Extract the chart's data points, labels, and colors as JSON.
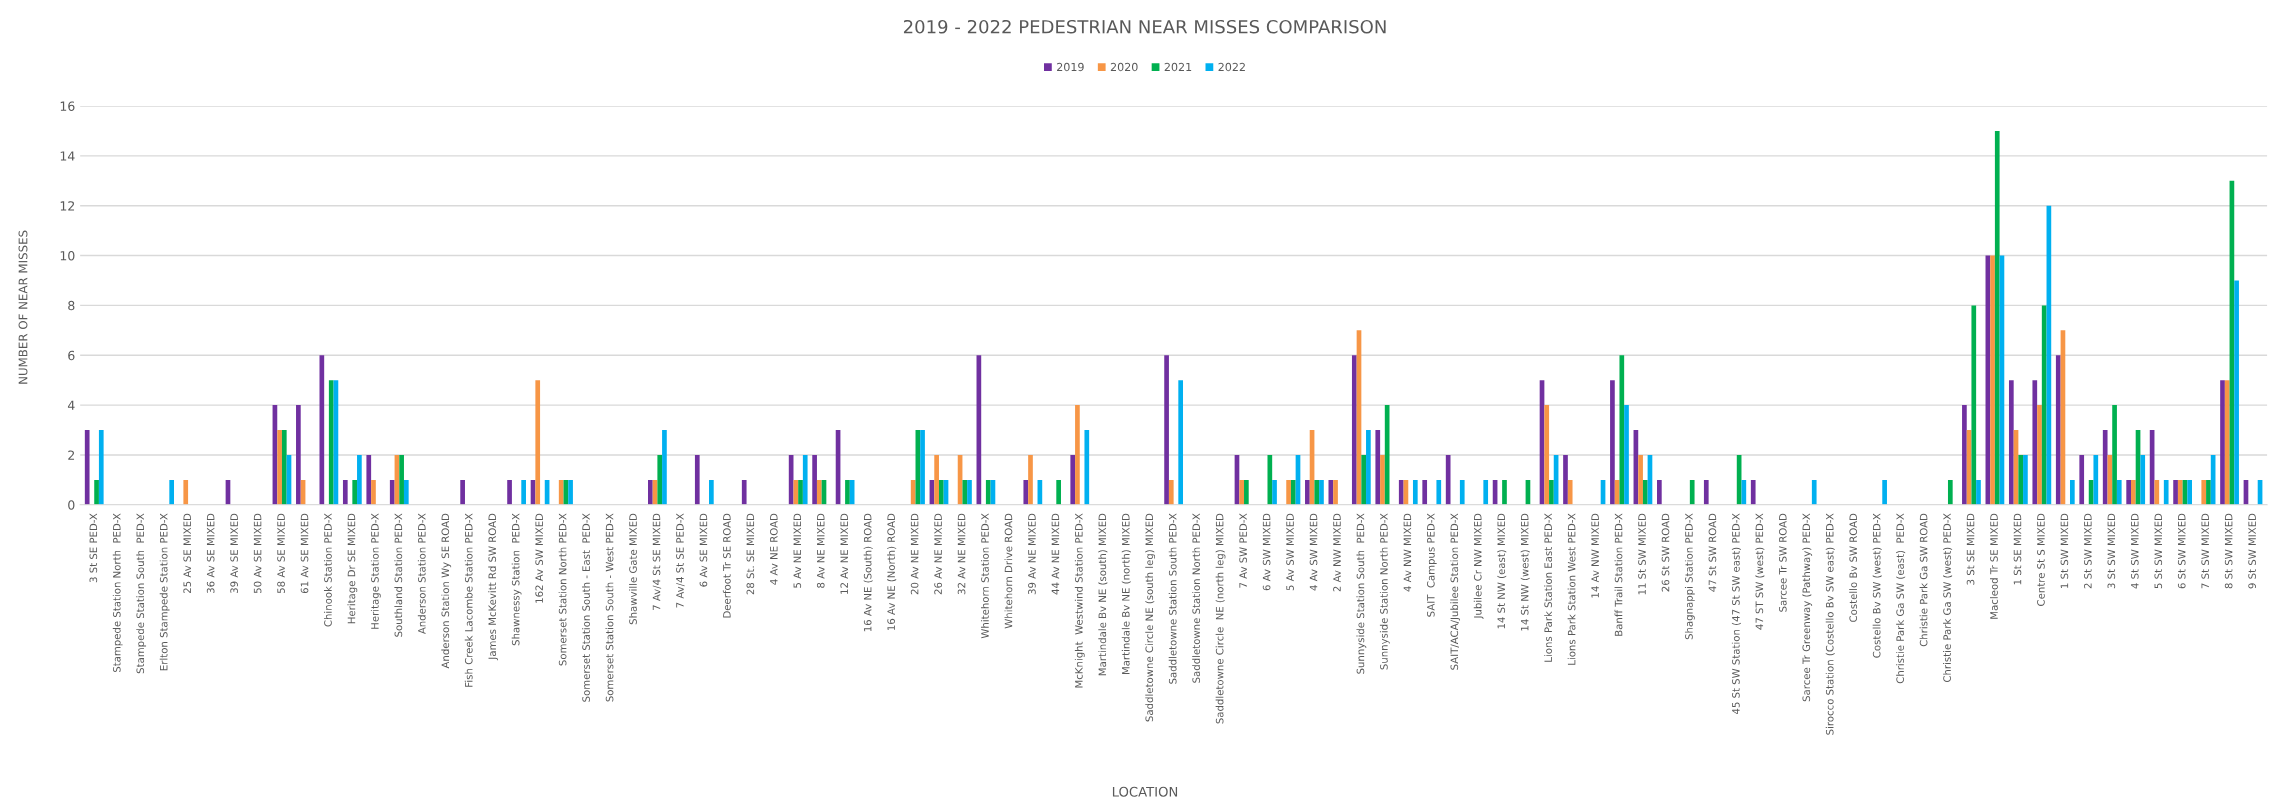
{
  "chart_data": {
    "type": "bar",
    "title": "2019 - 2022 PEDESTRIAN NEAR MISSES COMPARISON",
    "xlabel": "LOCATION",
    "ylabel": "NUMBER OF NEAR MISSES",
    "categories": [
      "3 St SE PED-X",
      "Stampede Station North  PED-X",
      "Stampede Station South  PED-X",
      "Erlton Stampede Station PED-X",
      "25 Av SE MIXED",
      "36 Av SE MIXED",
      "39 Av SE MIXED",
      "50 Av SE MIXED",
      "58 Av SE MIXED",
      "61 Av SE MIXED",
      "Chinook Station PED-X",
      "Heritage Dr SE MIXED",
      "Heritage Station PED-X",
      "Southland Station PED-X",
      "Anderson Station PED-X",
      "Anderson Station Wy SE ROAD",
      "Fish Creek Lacombe Station PED-X",
      "James McKevitt Rd SW ROAD",
      "Shawnessy Station  PED-X",
      "162 Av SW MIXED",
      "Somerset Station North PED-X",
      "Somerset Station South - East  PED-X",
      "Somerset Station South - West PED-X",
      "Shawville Gate MIXED",
      "7 Av/4 St SE MIXED",
      "7 Av/4 St SE PED-X",
      "6 Av SE MIXED",
      "Deerfoot Tr SE ROAD",
      "28 St. SE MIXED",
      "4 Av NE ROAD",
      "5 Av NE MIXED",
      "8 Av NE MIXED",
      "12 Av NE MIXED",
      "16 Av NE (South) ROAD",
      "16 Av NE (North) ROAD",
      "20 Av NE MIXED",
      "26 Av NE MIXED",
      "32 Av NE MIXED",
      "Whitehorn Station PED-X",
      "Whitehorn Drive ROAD",
      "39 Av NE MIXED",
      "44 Av NE MIXED",
      "McKnight  Westwind Station PED-X",
      "Martindale Bv NE (south) MIXED",
      "Martindale Bv NE (north) MIXED",
      "Saddletowne Circle NE (south leg) MIXED",
      "Saddletowne Station South PED-X",
      "Saddletowne Station North PED-X",
      "Saddletowne Circle  NE (north leg) MIXED",
      "7 Av SW PED-X",
      "6 Av SW MIXED",
      "5 Av SW MIXED",
      "4 Av SW MIXED",
      "2 Av NW MIXED",
      "Sunnyside Station South  PED-X",
      "Sunnyside Station North PED-X",
      "4 Av NW MIXED",
      "SAIT  Campus PED-X",
      "SAIT/ACA/Jubilee Station PED-X",
      "Jubilee Cr NW MIXED",
      "14 St NW (east) MIXED",
      "14 St NW (west) MIXED",
      "Lions Park Station East PED-X",
      "Lions Park Station West PED-X",
      "14 Av NW MIXED",
      "Banff Trail Station PED-X",
      "11 St SW MIXED",
      "26 St SW ROAD",
      "Shagnappi Station PED-X",
      "47 St SW ROAD",
      "45 St SW Station (47 St SW east) PED-X",
      "47 ST SW (west) PED-X",
      "Sarcee Tr SW ROAD",
      "Sarcee Tr Greenway (Pathway) PED-X",
      "Sirocco Station (Costello Bv SW east) PED-X",
      "Costello Bv SW ROAD",
      "Costello Bv SW (west) PED-X",
      "Christie Park Ga SW (east)  PED-X",
      "Christie Park Ga SW ROAD",
      "Christie Park Ga SW (west) PED-X",
      "3 St SE MIXED",
      "Macleod Tr SE MIXED",
      "1 St SE MIXED",
      "Centre St S MIXED",
      "1 St SW MIXED",
      "2 St SW MIXED",
      "3 St SW MIXED",
      "4 St SW MIXED",
      "5 St SW MIXED",
      "6 St SW MIXED",
      "7 St SW MIXED",
      "8 St SW MIXED",
      "9 St SW MIXED"
    ],
    "series": [
      {
        "name": "2019",
        "color": "#7030a0",
        "values": [
          3,
          0,
          0,
          0,
          0,
          0,
          1,
          0,
          4,
          4,
          6,
          1,
          2,
          1,
          0,
          0,
          1,
          0,
          1,
          1,
          0,
          0,
          0,
          0,
          1,
          0,
          2,
          0,
          1,
          0,
          2,
          2,
          3,
          0,
          0,
          0,
          1,
          0,
          6,
          0,
          1,
          0,
          2,
          0,
          0,
          0,
          6,
          0,
          0,
          2,
          0,
          0,
          1,
          1,
          6,
          3,
          1,
          1,
          2,
          0,
          1,
          0,
          5,
          2,
          0,
          5,
          3,
          1,
          0,
          1,
          0,
          1,
          0,
          0,
          0,
          0,
          0,
          0,
          0,
          0,
          4,
          10,
          5,
          5,
          6,
          2,
          3,
          1,
          3,
          1,
          0,
          5,
          1
        ]
      },
      {
        "name": "2020",
        "color": "#f79646",
        "values": [
          0,
          0,
          0,
          0,
          1,
          0,
          0,
          0,
          3,
          1,
          0,
          0,
          1,
          2,
          0,
          0,
          0,
          0,
          0,
          5,
          1,
          0,
          0,
          0,
          1,
          0,
          0,
          0,
          0,
          0,
          1,
          1,
          0,
          0,
          0,
          1,
          2,
          2,
          0,
          0,
          2,
          0,
          4,
          0,
          0,
          0,
          1,
          0,
          0,
          1,
          0,
          1,
          3,
          1,
          7,
          2,
          1,
          0,
          0,
          0,
          0,
          0,
          4,
          1,
          0,
          1,
          2,
          0,
          0,
          0,
          0,
          0,
          0,
          0,
          0,
          0,
          0,
          0,
          0,
          0,
          3,
          10,
          3,
          4,
          7,
          0,
          2,
          1,
          1,
          1,
          1,
          5,
          0
        ]
      },
      {
        "name": "2021",
        "color": "#00b050",
        "values": [
          1,
          0,
          0,
          0,
          0,
          0,
          0,
          0,
          3,
          0,
          5,
          1,
          0,
          2,
          0,
          0,
          0,
          0,
          0,
          0,
          1,
          0,
          0,
          0,
          2,
          0,
          0,
          0,
          0,
          0,
          1,
          1,
          1,
          0,
          0,
          3,
          1,
          1,
          1,
          0,
          0,
          1,
          0,
          0,
          0,
          0,
          0,
          0,
          0,
          1,
          2,
          1,
          1,
          0,
          2,
          4,
          0,
          0,
          0,
          0,
          1,
          1,
          1,
          0,
          0,
          6,
          1,
          0,
          1,
          0,
          2,
          0,
          0,
          0,
          0,
          0,
          0,
          0,
          0,
          1,
          8,
          15,
          2,
          8,
          0,
          1,
          4,
          3,
          0,
          1,
          1,
          13,
          0
        ]
      },
      {
        "name": "2022",
        "color": "#00b0f0",
        "values": [
          3,
          0,
          0,
          1,
          0,
          0,
          0,
          0,
          2,
          0,
          5,
          2,
          0,
          1,
          0,
          0,
          0,
          0,
          1,
          1,
          1,
          0,
          0,
          0,
          3,
          0,
          1,
          0,
          0,
          0,
          2,
          0,
          1,
          0,
          0,
          3,
          1,
          1,
          1,
          0,
          1,
          0,
          3,
          0,
          0,
          0,
          5,
          0,
          0,
          0,
          1,
          2,
          1,
          0,
          3,
          0,
          1,
          1,
          1,
          1,
          0,
          0,
          2,
          0,
          1,
          4,
          2,
          0,
          0,
          0,
          1,
          0,
          0,
          1,
          0,
          0,
          1,
          0,
          0,
          0,
          1,
          10,
          2,
          12,
          1,
          2,
          1,
          2,
          1,
          1,
          2,
          9,
          1
        ]
      }
    ],
    "ylim": [
      0,
      16
    ],
    "yticks": [
      0,
      2,
      4,
      6,
      8,
      10,
      12,
      14,
      16
    ],
    "grid": "y",
    "legend": "top"
  }
}
